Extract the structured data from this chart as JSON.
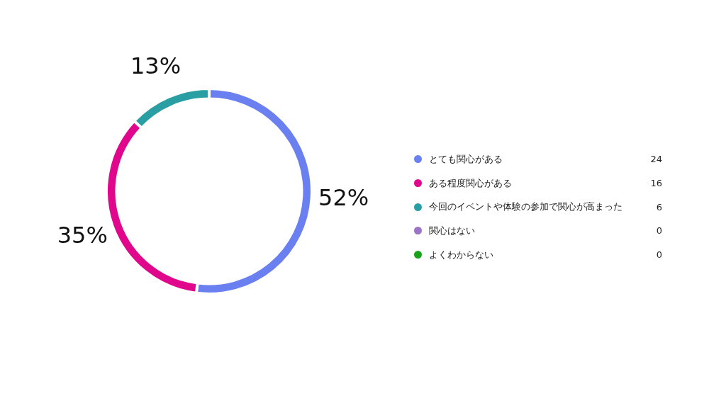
{
  "chart_data": {
    "type": "donut",
    "categories": [
      "とても関心がある",
      "ある程度関心がある",
      "今回のイベントや体験の参加で関心が高まった",
      "関心はない",
      "よくわからない"
    ],
    "values": [
      52,
      35,
      13,
      0,
      0
    ],
    "annotations": [
      "24",
      "16",
      "6",
      "0",
      "0"
    ],
    "value_labels": [
      "52%",
      "35%",
      "13%",
      null,
      null
    ],
    "colors": [
      "#6b80f0",
      "#e0078c",
      "#2a9fa3",
      "#9b74c6",
      "#1aa21a"
    ],
    "legend": "right"
  }
}
